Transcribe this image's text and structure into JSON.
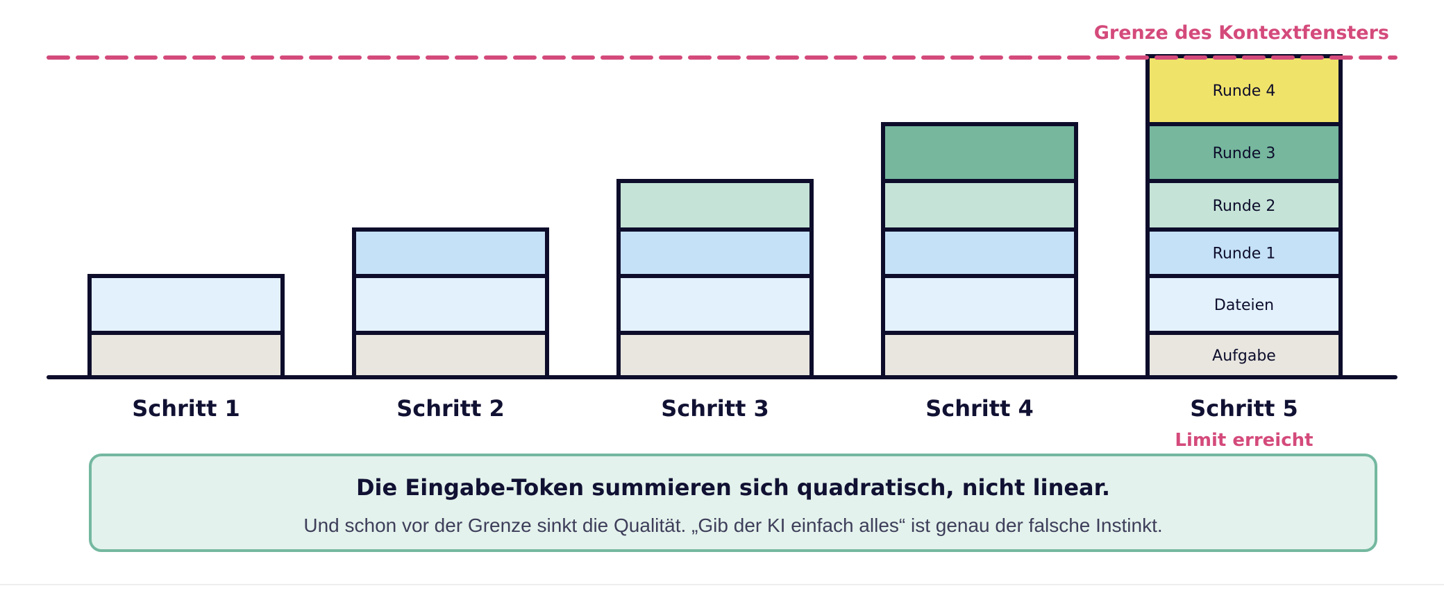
{
  "context_limit": {
    "label": "Grenze des Kontextfensters",
    "color": "#d44a7b"
  },
  "segment_types": [
    {
      "key": "aufgabe",
      "label": "Aufgabe",
      "color": "#e8e6df"
    },
    {
      "key": "dateien",
      "label": "Dateien",
      "color": "#e3f1fd"
    },
    {
      "key": "runde1",
      "label": "Runde 1",
      "color": "#c5e1f8"
    },
    {
      "key": "runde2",
      "label": "Runde 2",
      "color": "#c5e3d7"
    },
    {
      "key": "runde3",
      "label": "Runde 3",
      "color": "#76b79e"
    },
    {
      "key": "runde4",
      "label": "Runde 4",
      "color": "#f0e36a"
    }
  ],
  "steps": [
    {
      "label": "Schritt 1",
      "segments": [
        "aufgabe",
        "dateien"
      ],
      "show_segment_labels": false,
      "note": ""
    },
    {
      "label": "Schritt 2",
      "segments": [
        "aufgabe",
        "dateien",
        "runde1"
      ],
      "show_segment_labels": false,
      "note": ""
    },
    {
      "label": "Schritt 3",
      "segments": [
        "aufgabe",
        "dateien",
        "runde1",
        "runde2"
      ],
      "show_segment_labels": false,
      "note": ""
    },
    {
      "label": "Schritt 4",
      "segments": [
        "aufgabe",
        "dateien",
        "runde1",
        "runde2",
        "runde3"
      ],
      "show_segment_labels": false,
      "note": ""
    },
    {
      "label": "Schritt 5",
      "segments": [
        "aufgabe",
        "dateien",
        "runde1",
        "runde2",
        "runde3",
        "runde4"
      ],
      "show_segment_labels": true,
      "note": "Limit erreicht"
    }
  ],
  "summary": {
    "title": "Die Eingabe-Token summieren sich quadratisch, nicht linear.",
    "subtitle": "Und schon vor der Grenze sinkt die Qualität. „Gib der KI einfach alles“ ist genau der falsche Instinkt."
  }
}
